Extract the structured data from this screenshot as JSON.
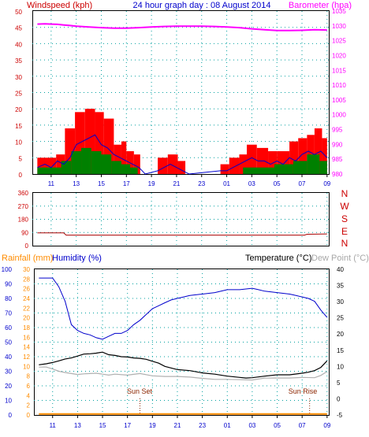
{
  "header": {
    "title": "24 hour graph day : 08 August 2014",
    "left_label": "Windspeed (kph)",
    "right_label": "Barometer (hpa)"
  },
  "wind_dir_labels": [
    "N",
    "W",
    "S",
    "E",
    "N"
  ],
  "lower_header": {
    "rainfall": "Rainfall (mm)",
    "humidity": "Humidity (%)",
    "temperature": "Temperature (°C)",
    "dewpoint": "Dew Point (°C)"
  },
  "annotations": {
    "sunset": "Sun Set",
    "sunrise": "Sun Rise"
  },
  "colors": {
    "windspeed_axis": "#cc0000",
    "barometer": "#ff00ff",
    "wind_gust": "#ff0000",
    "wind_avg": "#0000cc",
    "wind_low": "#008000",
    "direction": "#aa0000",
    "humidity": "#0000cc",
    "temperature": "#000000",
    "dewpoint": "#b0b0b0",
    "rainfall": "#ff8c00",
    "grid": "#00a0a0"
  },
  "chart_data": [
    {
      "type": "bar",
      "name": "wind-barometer",
      "x_tick_labels": [
        "11",
        "13",
        "15",
        "17",
        "19",
        "21",
        "23",
        "01",
        "03",
        "05",
        "07",
        "09"
      ],
      "x_ticks_hours": [
        11,
        13,
        15,
        17,
        19,
        21,
        23,
        25,
        27,
        29,
        31,
        33
      ],
      "xlim_hours": [
        9.5,
        33.2
      ],
      "ylim_left": [
        0,
        50
      ],
      "left_ticks": [
        0,
        5,
        10,
        15,
        20,
        25,
        30,
        35,
        40,
        45,
        50
      ],
      "ylim_right": [
        980,
        1035
      ],
      "right_ticks": [
        980,
        985,
        990,
        995,
        1000,
        1005,
        1010,
        1015,
        1020,
        1025,
        1030,
        1035
      ],
      "xlabel": "",
      "ylabel": "Windspeed (kph)",
      "gust_blocks": [
        {
          "x": [
            9.9,
            11.4
          ],
          "v": 5
        },
        {
          "x": [
            11.4,
            12.1
          ],
          "v": 6
        },
        {
          "x": [
            12.1,
            12.9
          ],
          "v": 14
        },
        {
          "x": [
            12.9,
            13.7
          ],
          "v": 19
        },
        {
          "x": [
            13.7,
            14.5
          ],
          "v": 20
        },
        {
          "x": [
            14.5,
            15.2
          ],
          "v": 19
        },
        {
          "x": [
            15.2,
            16.0
          ],
          "v": 17
        },
        {
          "x": [
            16.0,
            16.6
          ],
          "v": 9
        },
        {
          "x": [
            16.6,
            17.0
          ],
          "v": 10
        },
        {
          "x": [
            17.0,
            17.6
          ],
          "v": 7
        },
        {
          "x": [
            17.6,
            18.1
          ],
          "v": 6
        },
        {
          "x": [
            19.5,
            20.3
          ],
          "v": 5
        },
        {
          "x": [
            20.3,
            21.1
          ],
          "v": 6
        },
        {
          "x": [
            21.1,
            21.7
          ],
          "v": 4
        },
        {
          "x": [
            24.5,
            25.2
          ],
          "v": 3
        },
        {
          "x": [
            25.2,
            26.0
          ],
          "v": 5
        },
        {
          "x": [
            26.0,
            26.6
          ],
          "v": 6
        },
        {
          "x": [
            26.6,
            27.4
          ],
          "v": 9
        },
        {
          "x": [
            27.4,
            28.3
          ],
          "v": 8
        },
        {
          "x": [
            28.3,
            29.0
          ],
          "v": 7
        },
        {
          "x": [
            29.0,
            30.0
          ],
          "v": 7
        },
        {
          "x": [
            30.0,
            30.7
          ],
          "v": 10
        },
        {
          "x": [
            30.7,
            31.4
          ],
          "v": 11
        },
        {
          "x": [
            31.4,
            32.0
          ],
          "v": 12
        },
        {
          "x": [
            32.0,
            32.6
          ],
          "v": 14
        },
        {
          "x": [
            32.6,
            33.0
          ],
          "v": 11
        }
      ],
      "low_blocks": [
        {
          "x": [
            9.9,
            11.8
          ],
          "v": 2
        },
        {
          "x": [
            11.8,
            12.6
          ],
          "v": 4
        },
        {
          "x": [
            12.6,
            13.4
          ],
          "v": 7
        },
        {
          "x": [
            13.4,
            14.2
          ],
          "v": 8
        },
        {
          "x": [
            14.2,
            15.0
          ],
          "v": 7
        },
        {
          "x": [
            15.0,
            15.8
          ],
          "v": 6
        },
        {
          "x": [
            15.8,
            16.6
          ],
          "v": 4
        },
        {
          "x": [
            16.6,
            17.3
          ],
          "v": 3
        },
        {
          "x": [
            17.3,
            17.9
          ],
          "v": 2
        },
        {
          "x": [
            26.3,
            28.8
          ],
          "v": 2
        },
        {
          "x": [
            28.8,
            30.3
          ],
          "v": 3
        },
        {
          "x": [
            30.3,
            31.4
          ],
          "v": 4
        },
        {
          "x": [
            31.4,
            32.4
          ],
          "v": 6
        },
        {
          "x": [
            32.4,
            33.0
          ],
          "v": 4
        }
      ],
      "avg_line_x": [
        9.9,
        10.5,
        11.0,
        11.5,
        12.0,
        12.5,
        13.0,
        13.5,
        14.0,
        14.5,
        15.0,
        15.5,
        16.0,
        16.5,
        17.0,
        17.5,
        18.0,
        18.5,
        19.5,
        20.0,
        20.5,
        21.0,
        21.5,
        22.0,
        24.5,
        25.0,
        25.5,
        26.0,
        26.5,
        27.0,
        27.5,
        28.0,
        28.5,
        29.0,
        29.5,
        30.0,
        30.5,
        31.0,
        31.5,
        32.0,
        32.5,
        33.0
      ],
      "avg_line_v": [
        2,
        3,
        2,
        4,
        3,
        5,
        9,
        10,
        11,
        12,
        9,
        8,
        6,
        5,
        4,
        3,
        2,
        0,
        1,
        2,
        3,
        2,
        1,
        0,
        1,
        1,
        2,
        3,
        4,
        5,
        4,
        4,
        3,
        4,
        3,
        5,
        4,
        6,
        7,
        6,
        7,
        5
      ],
      "barometer_x": [
        9.9,
        10.5,
        11.0,
        11.5,
        12.0,
        12.5,
        13.0,
        14.0,
        15.0,
        16.0,
        17.0,
        18.0,
        19.0,
        20.0,
        21.0,
        22.0,
        23.0,
        24.0,
        25.0,
        26.0,
        27.0,
        28.0,
        29.0,
        30.0,
        31.0,
        32.0,
        33.0
      ],
      "barometer_v": [
        1030.6,
        1030.7,
        1030.6,
        1030.5,
        1030.3,
        1030.1,
        1029.9,
        1029.6,
        1029.4,
        1029.2,
        1029.2,
        1029.4,
        1029.6,
        1029.8,
        1029.9,
        1029.9,
        1029.9,
        1029.8,
        1029.6,
        1029.4,
        1029.0,
        1028.7,
        1028.4,
        1028.4,
        1028.5,
        1028.7,
        1028.6
      ]
    },
    {
      "type": "line",
      "name": "wind-direction",
      "ylim": [
        0,
        360
      ],
      "y_ticks": [
        0,
        90,
        180,
        270,
        360
      ],
      "x": [
        9.9,
        12.0,
        12.2,
        14.0,
        17.0,
        20.0,
        24.0,
        28.0,
        30.0,
        31.2,
        31.4,
        33.0
      ],
      "values": [
        87,
        87,
        72,
        72,
        72,
        72,
        72,
        72,
        72,
        72,
        78,
        80
      ]
    },
    {
      "type": "line",
      "name": "humidity-temperature",
      "x_tick_labels": [
        "11",
        "13",
        "15",
        "17",
        "19",
        "21",
        "23",
        "01",
        "03",
        "05",
        "07",
        "09"
      ],
      "ylim_humidity": [
        0,
        100
      ],
      "humidity_ticks": [
        0,
        10,
        20,
        30,
        40,
        50,
        60,
        70,
        80,
        90,
        100
      ],
      "ylim_rain": [
        0,
        30
      ],
      "rain_ticks": [
        0,
        2,
        4,
        6,
        8,
        10,
        12,
        14,
        16,
        18,
        20,
        22,
        24,
        26,
        28,
        30
      ],
      "ylim_temp": [
        -5,
        40
      ],
      "temp_ticks": [
        -5,
        0,
        5,
        10,
        15,
        20,
        25,
        30,
        35,
        40
      ],
      "series": [
        {
          "name": "Humidity (%)",
          "axis": "humidity",
          "x": [
            9.9,
            10.5,
            11.0,
            11.5,
            12.0,
            12.5,
            13.0,
            13.5,
            14.0,
            14.5,
            15.0,
            15.5,
            16.0,
            16.5,
            17.0,
            17.5,
            18.0,
            18.5,
            19.0,
            19.5,
            20.0,
            20.5,
            21.0,
            22.0,
            23.0,
            24.0,
            25.0,
            26.0,
            27.0,
            27.5,
            28.0,
            29.0,
            30.0,
            30.5,
            31.0,
            31.5,
            32.0,
            32.5,
            33.0
          ],
          "values": [
            94,
            94,
            94,
            88,
            78,
            62,
            58,
            56,
            55,
            53,
            52,
            54,
            56,
            56,
            58,
            62,
            65,
            69,
            73,
            75,
            77,
            79,
            80,
            82,
            83,
            84,
            86,
            86,
            87,
            86,
            85,
            84,
            83,
            82,
            81,
            80,
            78,
            72,
            67
          ]
        },
        {
          "name": "Temperature (°C)",
          "axis": "temp",
          "x": [
            9.9,
            10.5,
            11.0,
            11.5,
            12.0,
            12.5,
            13.0,
            13.5,
            14.0,
            14.5,
            15.0,
            15.5,
            16.0,
            16.5,
            17.0,
            17.5,
            18.0,
            18.5,
            19.0,
            19.5,
            20.0,
            21.0,
            22.0,
            23.0,
            24.0,
            25.0,
            26.0,
            26.5,
            27.0,
            28.0,
            29.0,
            30.0,
            31.0,
            31.5,
            32.0,
            32.5,
            33.0
          ],
          "values": [
            10.5,
            10.8,
            11.2,
            11.7,
            12.3,
            12.6,
            13.2,
            13.8,
            13.9,
            14.1,
            14.4,
            13.6,
            13.4,
            13.0,
            12.9,
            12.6,
            12.5,
            12.2,
            11.6,
            11.0,
            10.0,
            9.0,
            8.7,
            8.0,
            7.6,
            7.0,
            6.6,
            6.4,
            6.5,
            7.0,
            7.4,
            7.4,
            7.9,
            8.2,
            8.7,
            9.7,
            11.7
          ]
        },
        {
          "name": "Dew Point (°C)",
          "axis": "temp",
          "x": [
            9.9,
            10.5,
            11.0,
            11.5,
            12.0,
            12.5,
            13.0,
            13.5,
            14.0,
            14.5,
            15.0,
            15.5,
            16.0,
            17.0,
            18.0,
            19.0,
            20.0,
            21.0,
            22.0,
            23.0,
            24.0,
            25.0,
            26.0,
            27.0,
            28.0,
            29.0,
            30.0,
            31.0,
            32.0,
            32.5,
            33.0
          ],
          "values": [
            9.8,
            9.8,
            9.2,
            8.5,
            8.1,
            7.8,
            7.5,
            7.7,
            7.8,
            7.9,
            7.6,
            7.3,
            7.6,
            7.3,
            7.8,
            7.1,
            6.9,
            6.9,
            6.7,
            6.3,
            6.0,
            6.0,
            5.9,
            5.8,
            6.4,
            6.4,
            6.4,
            6.6,
            6.5,
            7.2,
            8.4
          ]
        },
        {
          "name": "Rainfall (mm)",
          "axis": "rain",
          "x": [
            9.9,
            33.0
          ],
          "values": [
            0.2,
            0.2
          ]
        }
      ],
      "sunset_hour": 18.0,
      "sunrise_hour": 31.6
    }
  ]
}
